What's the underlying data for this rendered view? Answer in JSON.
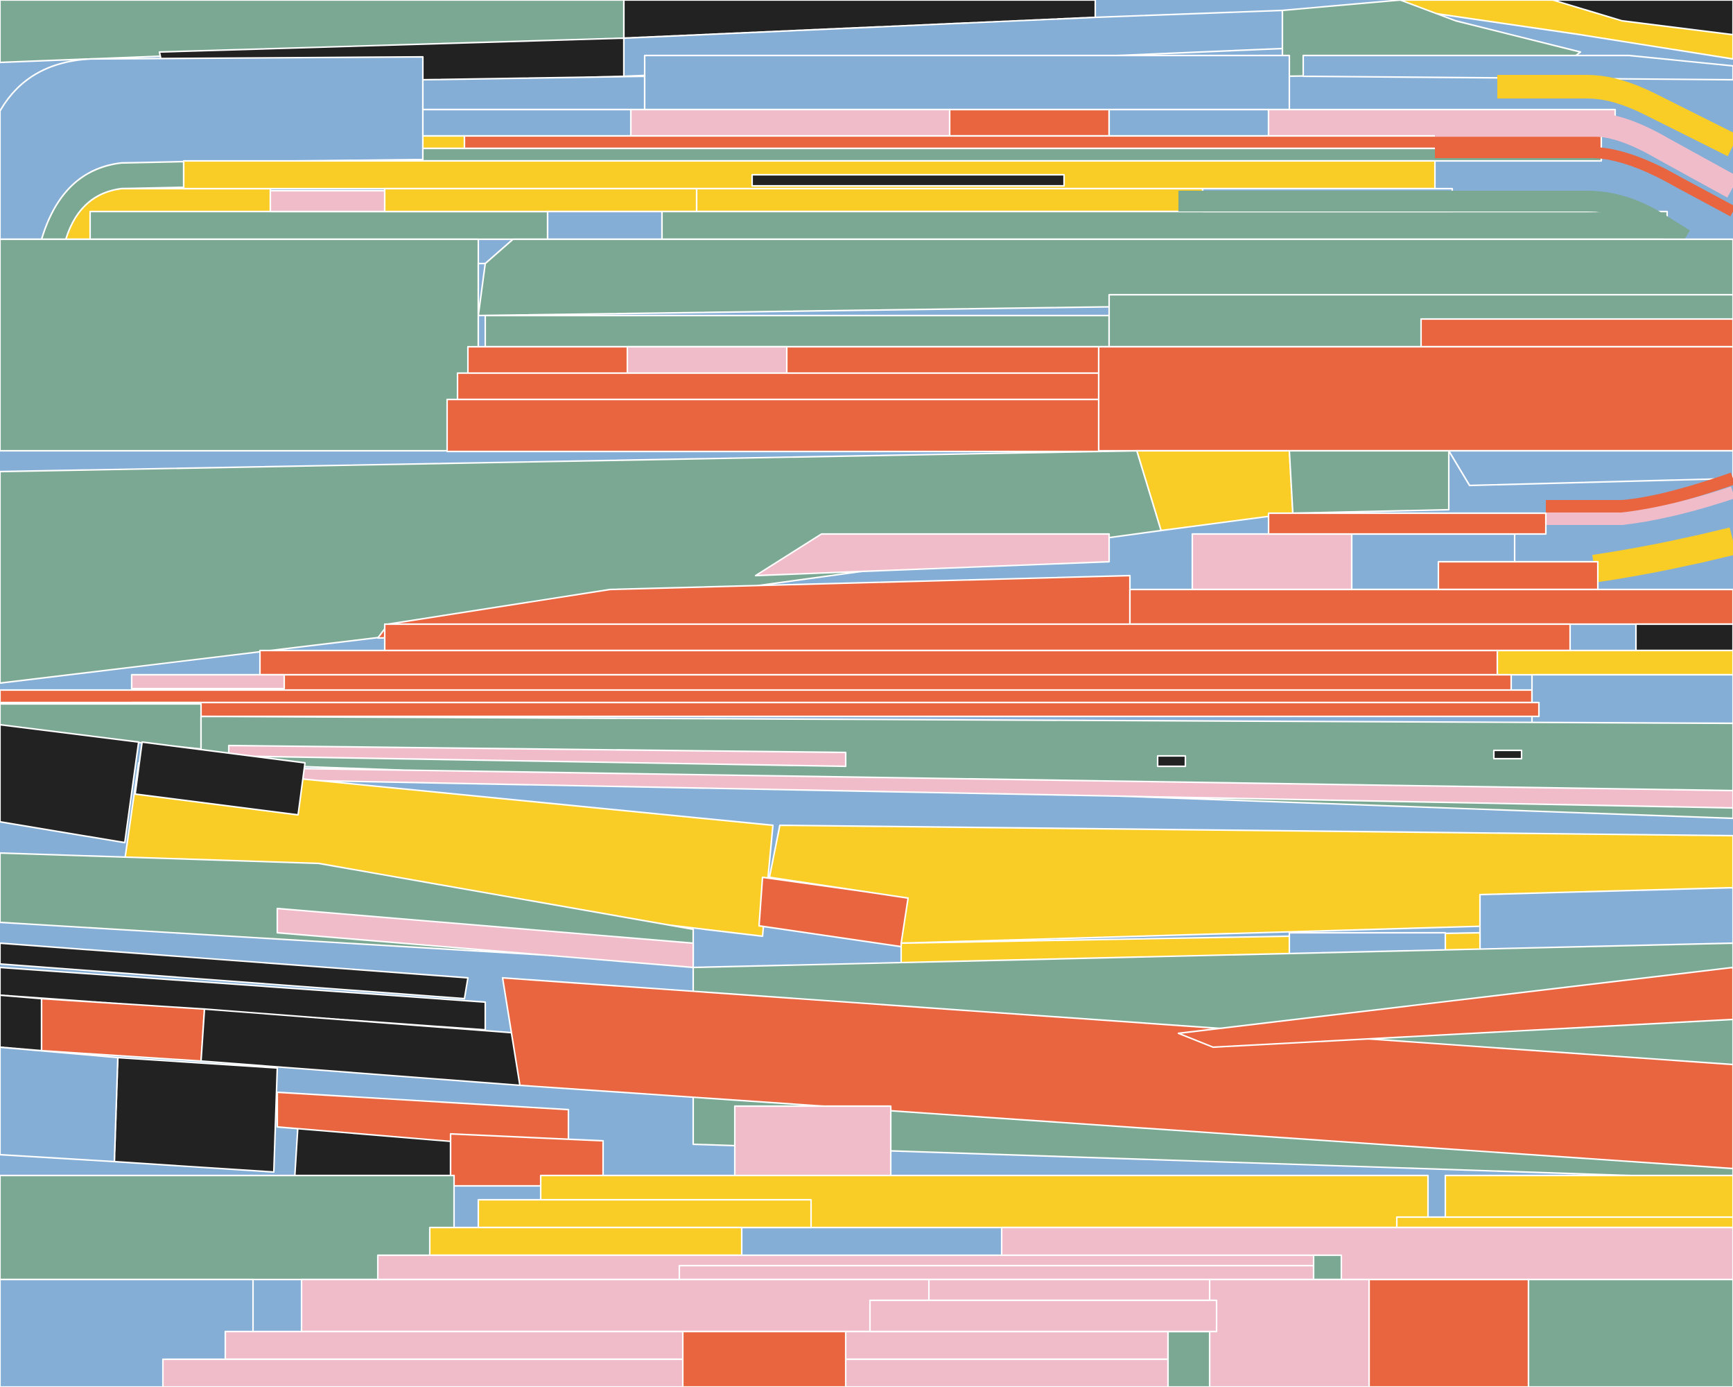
{
  "canvas_label": "",
  "palette": {
    "green": "#7ba893",
    "blue": "#84aed6",
    "yellow": "#f9cd26",
    "red": "#e9653f",
    "pink": "#f0bcc9",
    "black": "#222222",
    "line": "#ffffff"
  },
  "layers": [
    "background",
    "top-curved-track",
    "upper-green-stack",
    "upper-red-stack",
    "middle-green-slab",
    "middle-red-stack",
    "middle-green-stripes",
    "middle-yellow-band",
    "lower-black-tiles",
    "large-red-band",
    "bottom-yellow-stack",
    "bottom-pink-stack"
  ]
}
